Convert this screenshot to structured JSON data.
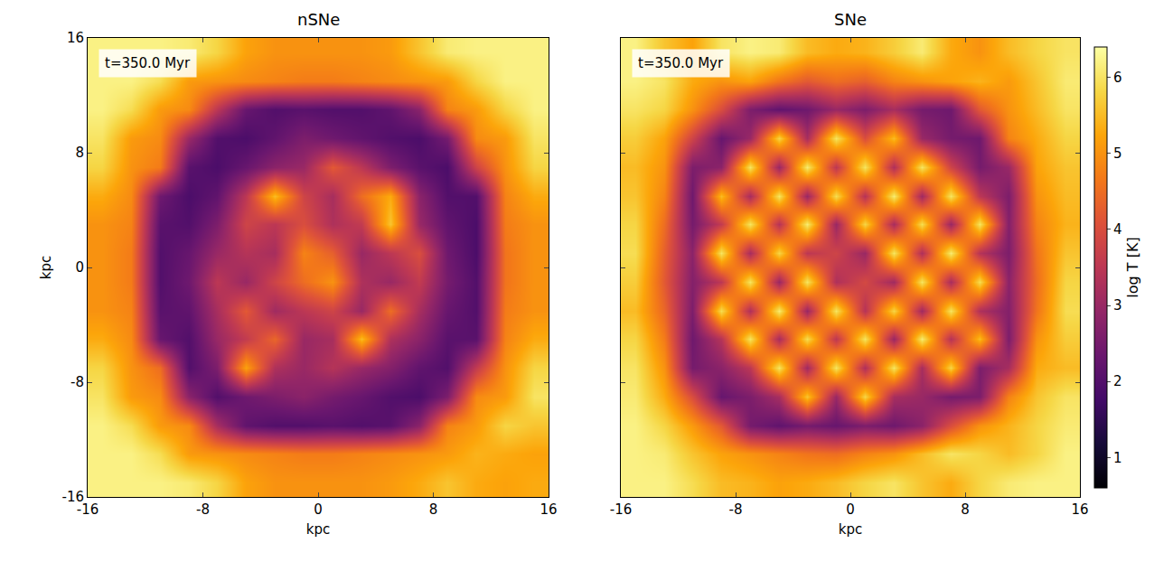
{
  "chart_data": {
    "type": "heatmap",
    "x": [
      -15,
      -13,
      -11,
      -9,
      -7,
      -5,
      -3,
      -1,
      1,
      3,
      5,
      7,
      9,
      11,
      13,
      15
    ],
    "y": [
      -15,
      -13,
      -11,
      -9,
      -7,
      -5,
      -3,
      -1,
      1,
      3,
      5,
      7,
      9,
      11,
      13,
      15
    ],
    "xlim": [
      -16,
      16
    ],
    "ylim": [
      -16,
      16
    ],
    "xticks": [
      -16,
      -8,
      0,
      8,
      16
    ],
    "yticks": [
      -16,
      -8,
      0,
      8,
      16
    ],
    "x_label": "kpc",
    "y_label": "kpc",
    "colorbar": {
      "label": "log T [K]",
      "range": [
        0.6,
        6.4
      ],
      "ticks": [
        1,
        2,
        3,
        4,
        5,
        6
      ]
    },
    "panels": [
      {
        "title": "nSNe",
        "annotation": "t=350.0 Myr",
        "tick_labels": true,
        "z": [
          [
            6.2,
            6.2,
            6.2,
            6.1,
            5.8,
            5.2,
            5.0,
            5.0,
            5.0,
            5.0,
            5.1,
            5.3,
            5.6,
            5.3,
            5.2,
            5.3
          ],
          [
            6.2,
            6.2,
            5.9,
            5.1,
            5.0,
            4.9,
            4.8,
            4.7,
            4.7,
            4.8,
            4.9,
            5.0,
            5.1,
            5.4,
            5.3,
            5.2
          ],
          [
            6.2,
            5.9,
            5.1,
            4.9,
            3.2,
            2.2,
            2.0,
            2.0,
            2.1,
            2.0,
            2.1,
            2.8,
            4.8,
            5.1,
            5.8,
            5.6
          ],
          [
            6.0,
            5.1,
            4.9,
            2.8,
            2.0,
            2.4,
            2.6,
            2.8,
            2.5,
            2.3,
            2.0,
            1.9,
            2.6,
            4.9,
            5.1,
            6.0
          ],
          [
            5.8,
            5.0,
            4.5,
            2.0,
            2.6,
            5.2,
            3.3,
            3.0,
            3.4,
            3.0,
            2.7,
            2.2,
            2.0,
            3.6,
            5.0,
            5.8
          ],
          [
            5.3,
            4.9,
            2.3,
            2.0,
            3.0,
            3.6,
            4.4,
            3.0,
            3.2,
            5.5,
            3.3,
            2.8,
            2.1,
            2.1,
            4.8,
            5.3
          ],
          [
            5.0,
            4.8,
            2.1,
            2.2,
            3.2,
            4.2,
            3.1,
            3.5,
            3.8,
            3.0,
            4.5,
            3.2,
            2.3,
            2.0,
            4.7,
            5.0
          ],
          [
            5.0,
            4.7,
            2.0,
            2.4,
            3.5,
            3.0,
            3.8,
            4.5,
            5.0,
            3.3,
            3.0,
            3.6,
            2.5,
            2.0,
            4.6,
            5.0
          ],
          [
            5.0,
            4.7,
            2.0,
            2.3,
            3.0,
            3.4,
            3.2,
            4.8,
            4.3,
            3.0,
            3.5,
            4.0,
            2.4,
            1.9,
            4.6,
            5.0
          ],
          [
            5.0,
            4.8,
            2.1,
            2.0,
            2.6,
            3.8,
            3.5,
            4.0,
            3.3,
            3.6,
            5.6,
            3.0,
            2.2,
            1.9,
            4.7,
            5.0
          ],
          [
            5.3,
            4.9,
            2.4,
            1.9,
            2.2,
            3.5,
            5.5,
            3.8,
            3.2,
            4.5,
            5.3,
            2.8,
            2.0,
            2.0,
            4.8,
            5.3
          ],
          [
            5.8,
            5.0,
            4.7,
            2.1,
            1.9,
            2.3,
            2.8,
            3.0,
            4.2,
            3.5,
            2.6,
            2.1,
            1.9,
            3.8,
            5.0,
            5.8
          ],
          [
            6.0,
            5.1,
            4.9,
            3.0,
            2.0,
            1.9,
            2.2,
            2.6,
            2.4,
            2.2,
            2.0,
            1.9,
            2.5,
            4.9,
            5.1,
            6.0
          ],
          [
            6.2,
            5.9,
            5.1,
            4.9,
            3.5,
            2.3,
            2.0,
            2.1,
            2.0,
            2.0,
            2.2,
            2.8,
            4.8,
            5.1,
            5.8,
            6.2
          ],
          [
            6.2,
            6.2,
            5.9,
            5.1,
            5.0,
            4.9,
            4.8,
            4.7,
            4.7,
            4.8,
            4.9,
            5.0,
            5.1,
            5.8,
            6.2,
            6.2
          ],
          [
            6.2,
            6.2,
            6.2,
            6.1,
            5.8,
            5.2,
            5.0,
            5.0,
            5.0,
            5.0,
            5.1,
            5.6,
            6.1,
            6.2,
            6.2,
            6.2
          ]
        ]
      },
      {
        "title": "SNe",
        "annotation": "t=350.0 Myr",
        "tick_labels": "x",
        "z": [
          [
            6.2,
            6.2,
            5.9,
            5.5,
            5.4,
            5.2,
            5.3,
            5.5,
            5.8,
            6.0,
            5.6,
            5.3,
            5.8,
            6.1,
            6.2,
            6.2
          ],
          [
            6.2,
            6.1,
            5.6,
            5.2,
            5.0,
            4.8,
            4.6,
            4.5,
            4.8,
            5.0,
            5.5,
            6.0,
            5.8,
            5.5,
            5.8,
            6.2
          ],
          [
            6.2,
            5.8,
            5.1,
            4.2,
            2.5,
            2.2,
            2.5,
            2.3,
            2.6,
            2.4,
            2.8,
            4.0,
            5.0,
            5.4,
            5.8,
            6.1
          ],
          [
            6.1,
            5.3,
            4.0,
            2.3,
            2.6,
            3.2,
            5.6,
            3.0,
            5.8,
            3.2,
            3.0,
            2.5,
            2.6,
            4.8,
            5.6,
            6.0
          ],
          [
            6.0,
            5.0,
            2.5,
            2.8,
            3.5,
            6.0,
            3.1,
            6.0,
            3.3,
            6.0,
            3.2,
            5.8,
            2.6,
            3.2,
            5.3,
            5.5
          ],
          [
            5.8,
            4.7,
            2.4,
            3.4,
            6.0,
            3.2,
            5.9,
            3.5,
            6.0,
            3.0,
            6.1,
            3.4,
            5.5,
            2.6,
            5.0,
            5.7
          ],
          [
            5.5,
            4.4,
            2.6,
            5.9,
            3.3,
            6.1,
            3.0,
            6.0,
            3.4,
            5.8,
            3.1,
            6.0,
            3.3,
            2.7,
            4.6,
            5.9
          ],
          [
            5.7,
            4.2,
            2.7,
            3.5,
            6.0,
            3.0,
            6.0,
            3.3,
            3.9,
            3.1,
            6.0,
            3.2,
            5.9,
            2.8,
            4.5,
            5.8
          ],
          [
            5.9,
            4.3,
            2.8,
            6.0,
            3.2,
            5.8,
            3.5,
            3.8,
            3.0,
            6.0,
            3.3,
            6.1,
            3.4,
            2.6,
            4.6,
            5.6
          ],
          [
            5.8,
            4.5,
            2.5,
            3.6,
            6.0,
            3.4,
            6.1,
            3.0,
            5.8,
            3.2,
            5.9,
            3.0,
            6.0,
            2.7,
            4.8,
            5.4
          ],
          [
            5.6,
            4.8,
            2.4,
            5.5,
            3.2,
            6.0,
            3.0,
            5.9,
            3.4,
            6.1,
            3.1,
            6.0,
            3.5,
            2.6,
            5.0,
            5.5
          ],
          [
            5.5,
            5.0,
            2.6,
            2.8,
            6.0,
            3.0,
            6.1,
            3.5,
            6.0,
            3.3,
            6.0,
            3.8,
            2.5,
            3.0,
            5.2,
            5.6
          ],
          [
            5.7,
            5.2,
            3.8,
            2.3,
            3.0,
            5.8,
            3.2,
            6.0,
            4.0,
            5.5,
            3.0,
            2.5,
            2.4,
            4.8,
            5.3,
            5.8
          ],
          [
            6.0,
            5.8,
            5.0,
            4.0,
            2.6,
            2.2,
            2.4,
            3.0,
            2.6,
            3.2,
            2.5,
            2.4,
            4.2,
            5.0,
            5.5,
            6.0
          ],
          [
            6.2,
            6.0,
            5.3,
            5.0,
            5.2,
            4.6,
            4.2,
            4.5,
            4.3,
            4.8,
            5.0,
            5.2,
            5.4,
            5.1,
            5.6,
            6.1
          ],
          [
            6.2,
            5.6,
            5.2,
            6.0,
            6.2,
            6.1,
            5.5,
            5.3,
            5.4,
            5.7,
            6.1,
            5.3,
            5.0,
            5.5,
            5.8,
            6.0
          ]
        ]
      }
    ]
  }
}
